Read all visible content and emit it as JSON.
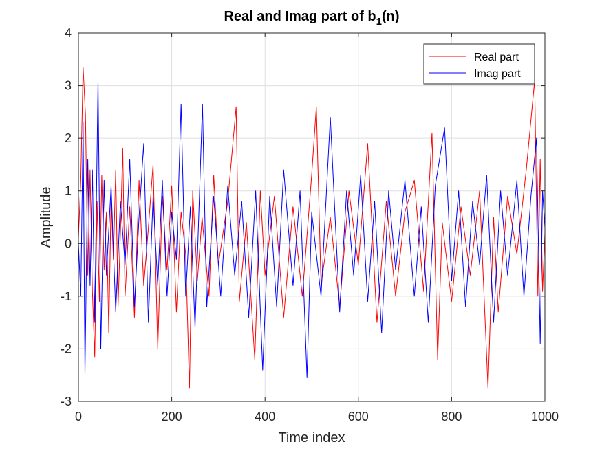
{
  "chart_data": {
    "type": "line",
    "title": "Real and Imag part of b",
    "title_subscript": "1",
    "title_suffix": "(n)",
    "xlabel": "Time index",
    "ylabel": "Amplitude",
    "xlim": [
      0,
      1000
    ],
    "ylim": [
      -3,
      4
    ],
    "xticks": [
      0,
      200,
      400,
      600,
      800,
      1000
    ],
    "yticks": [
      -3,
      -2,
      -1,
      0,
      1,
      2,
      3,
      4
    ],
    "grid": true,
    "legend_position": "top-right",
    "series": [
      {
        "name": "Real part",
        "color": "#ff0000",
        "points": [
          [
            0,
            0.1
          ],
          [
            5,
            1.2
          ],
          [
            10,
            3.35
          ],
          [
            15,
            2.45
          ],
          [
            20,
            -0.6
          ],
          [
            25,
            1.4
          ],
          [
            30,
            -0.9
          ],
          [
            35,
            -2.15
          ],
          [
            40,
            0.8
          ],
          [
            45,
            -1.1
          ],
          [
            50,
            1.3
          ],
          [
            55,
            -0.5
          ],
          [
            60,
            0.6
          ],
          [
            65,
            -1.7
          ],
          [
            70,
            0.9
          ],
          [
            75,
            -0.3
          ],
          [
            80,
            1.4
          ],
          [
            85,
            -1.2
          ],
          [
            90,
            0.2
          ],
          [
            95,
            1.8
          ],
          [
            100,
            -1.0
          ],
          [
            110,
            0.7
          ],
          [
            120,
            -1.4
          ],
          [
            130,
            1.2
          ],
          [
            140,
            -0.8
          ],
          [
            150,
            0.3
          ],
          [
            160,
            1.5
          ],
          [
            170,
            -2.0
          ],
          [
            180,
            0.9
          ],
          [
            190,
            -0.5
          ],
          [
            200,
            1.1
          ],
          [
            210,
            -1.3
          ],
          [
            220,
            0.6
          ],
          [
            230,
            -0.2
          ],
          [
            238,
            -2.75
          ],
          [
            245,
            1.0
          ],
          [
            255,
            -0.7
          ],
          [
            265,
            0.5
          ],
          [
            280,
            -1.0
          ],
          [
            290,
            1.3
          ],
          [
            300,
            -0.4
          ],
          [
            320,
            0.8
          ],
          [
            338,
            2.6
          ],
          [
            345,
            -1.1
          ],
          [
            360,
            0.4
          ],
          [
            378,
            -2.2
          ],
          [
            390,
            1.0
          ],
          [
            400,
            -0.6
          ],
          [
            420,
            0.9
          ],
          [
            440,
            -1.4
          ],
          [
            460,
            0.7
          ],
          [
            480,
            -1.0
          ],
          [
            500,
            1.3
          ],
          [
            510,
            2.6
          ],
          [
            520,
            -0.8
          ],
          [
            540,
            0.5
          ],
          [
            560,
            -1.2
          ],
          [
            580,
            1.0
          ],
          [
            600,
            -0.4
          ],
          [
            620,
            1.9
          ],
          [
            640,
            -1.5
          ],
          [
            660,
            0.8
          ],
          [
            680,
            -1.0
          ],
          [
            700,
            0.6
          ],
          [
            720,
            1.2
          ],
          [
            740,
            -0.9
          ],
          [
            758,
            2.1
          ],
          [
            770,
            -2.2
          ],
          [
            780,
            0.4
          ],
          [
            800,
            -1.1
          ],
          [
            820,
            0.7
          ],
          [
            840,
            -0.6
          ],
          [
            860,
            1.0
          ],
          [
            878,
            -2.75
          ],
          [
            890,
            0.5
          ],
          [
            900,
            -1.3
          ],
          [
            920,
            0.9
          ],
          [
            940,
            -0.2
          ],
          [
            960,
            1.4
          ],
          [
            978,
            3.1
          ],
          [
            985,
            -1.0
          ],
          [
            990,
            1.6
          ],
          [
            995,
            -0.9
          ],
          [
            1000,
            0.2
          ]
        ]
      },
      {
        "name": "Imag part",
        "color": "#0000ff",
        "points": [
          [
            0,
            0.0
          ],
          [
            5,
            -1.0
          ],
          [
            10,
            2.3
          ],
          [
            14,
            -2.5
          ],
          [
            20,
            1.6
          ],
          [
            25,
            -0.8
          ],
          [
            30,
            1.4
          ],
          [
            35,
            -1.5
          ],
          [
            42,
            3.1
          ],
          [
            48,
            -2.0
          ],
          [
            55,
            1.2
          ],
          [
            60,
            -0.6
          ],
          [
            70,
            1.1
          ],
          [
            80,
            -1.3
          ],
          [
            90,
            0.8
          ],
          [
            100,
            -0.4
          ],
          [
            110,
            1.6
          ],
          [
            120,
            -1.2
          ],
          [
            130,
            0.5
          ],
          [
            140,
            1.9
          ],
          [
            150,
            -1.5
          ],
          [
            160,
            0.9
          ],
          [
            170,
            -0.8
          ],
          [
            180,
            1.2
          ],
          [
            190,
            -1.0
          ],
          [
            200,
            0.6
          ],
          [
            210,
            -0.3
          ],
          [
            220,
            2.65
          ],
          [
            230,
            -1.0
          ],
          [
            240,
            0.7
          ],
          [
            250,
            -1.6
          ],
          [
            266,
            2.65
          ],
          [
            275,
            -1.2
          ],
          [
            290,
            0.9
          ],
          [
            305,
            -1.0
          ],
          [
            320,
            1.1
          ],
          [
            335,
            -0.6
          ],
          [
            350,
            0.8
          ],
          [
            365,
            -1.4
          ],
          [
            380,
            1.0
          ],
          [
            395,
            -2.4
          ],
          [
            410,
            0.9
          ],
          [
            425,
            -1.2
          ],
          [
            440,
            1.4
          ],
          [
            460,
            -0.8
          ],
          [
            475,
            1.0
          ],
          [
            490,
            -2.55
          ],
          [
            500,
            0.6
          ],
          [
            520,
            -1.0
          ],
          [
            540,
            2.4
          ],
          [
            560,
            -1.3
          ],
          [
            575,
            1.0
          ],
          [
            590,
            -0.6
          ],
          [
            605,
            1.3
          ],
          [
            620,
            -1.1
          ],
          [
            635,
            0.8
          ],
          [
            650,
            -1.7
          ],
          [
            665,
            1.0
          ],
          [
            680,
            -0.5
          ],
          [
            700,
            1.2
          ],
          [
            720,
            -1.0
          ],
          [
            735,
            0.7
          ],
          [
            750,
            -1.5
          ],
          [
            765,
            1.1
          ],
          [
            785,
            2.2
          ],
          [
            800,
            -0.7
          ],
          [
            815,
            1.0
          ],
          [
            830,
            -1.2
          ],
          [
            845,
            0.8
          ],
          [
            860,
            -0.4
          ],
          [
            875,
            1.3
          ],
          [
            890,
            -1.5
          ],
          [
            905,
            1.0
          ],
          [
            920,
            -0.6
          ],
          [
            940,
            1.2
          ],
          [
            955,
            -1.0
          ],
          [
            970,
            0.9
          ],
          [
            982,
            2.0
          ],
          [
            990,
            -1.9
          ],
          [
            995,
            1.0
          ],
          [
            1000,
            0.3
          ]
        ]
      }
    ]
  }
}
